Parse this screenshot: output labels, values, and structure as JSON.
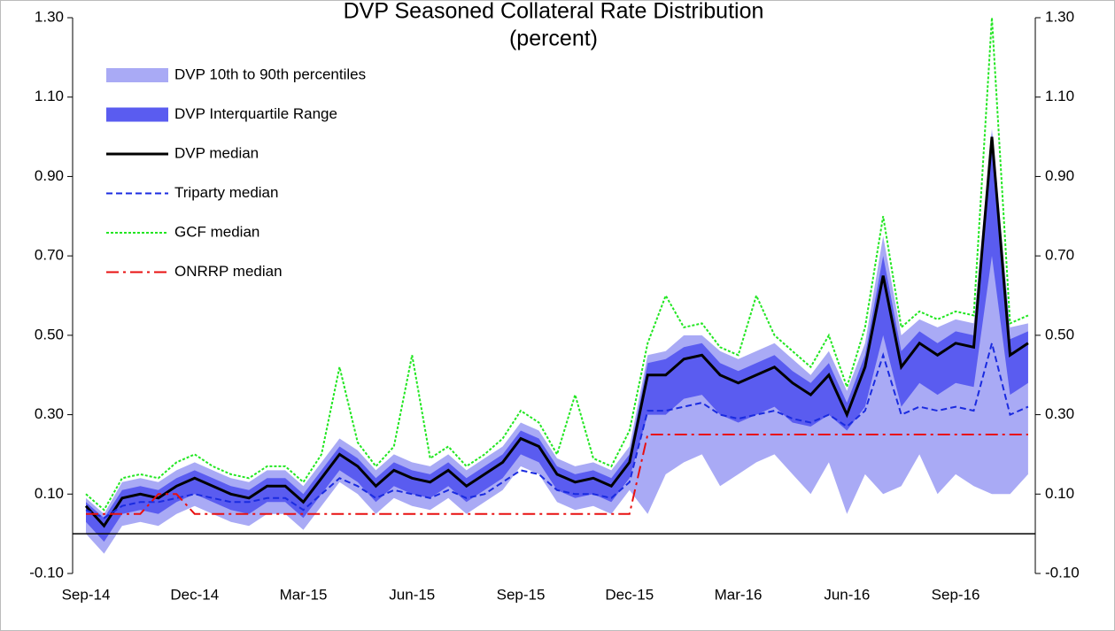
{
  "chart_data": {
    "type": "line",
    "title": "DVP Seasoned Collateral Rate Distribution",
    "subtitle": "(percent)",
    "categories": [
      "Sep-14",
      null,
      null,
      null,
      null,
      null,
      "Dec-14",
      null,
      null,
      null,
      null,
      null,
      "Mar-15",
      null,
      null,
      null,
      null,
      null,
      "Jun-15",
      null,
      null,
      null,
      null,
      null,
      "Sep-15",
      null,
      null,
      null,
      null,
      null,
      "Dec-15",
      null,
      null,
      null,
      null,
      null,
      "Mar-16",
      null,
      null,
      null,
      null,
      null,
      "Jun-16",
      null,
      null,
      null,
      null,
      null,
      "Sep-16",
      null,
      null,
      null,
      null
    ],
    "series": [
      {
        "name": "DVP 10th to 90th percentiles",
        "style": "band",
        "color": "#a9aaf5",
        "low": [
          0.0,
          -0.05,
          0.02,
          0.03,
          0.02,
          0.05,
          0.07,
          0.05,
          0.03,
          0.02,
          0.05,
          0.05,
          0.01,
          0.07,
          0.13,
          0.1,
          0.05,
          0.09,
          0.07,
          0.06,
          0.09,
          0.05,
          0.08,
          0.11,
          0.17,
          0.15,
          0.08,
          0.06,
          0.07,
          0.05,
          0.11,
          0.05,
          0.15,
          0.18,
          0.2,
          0.12,
          0.15,
          0.18,
          0.2,
          0.15,
          0.1,
          0.18,
          0.05,
          0.15,
          0.1,
          0.12,
          0.2,
          0.1,
          0.15,
          0.12,
          0.1,
          0.1,
          0.15
        ],
        "high": [
          0.09,
          0.05,
          0.13,
          0.14,
          0.13,
          0.16,
          0.18,
          0.16,
          0.14,
          0.13,
          0.16,
          0.16,
          0.12,
          0.18,
          0.24,
          0.21,
          0.16,
          0.2,
          0.18,
          0.17,
          0.2,
          0.16,
          0.19,
          0.22,
          0.28,
          0.26,
          0.19,
          0.17,
          0.18,
          0.16,
          0.22,
          0.45,
          0.46,
          0.5,
          0.5,
          0.46,
          0.44,
          0.46,
          0.48,
          0.44,
          0.4,
          0.46,
          0.36,
          0.48,
          0.75,
          0.5,
          0.54,
          0.52,
          0.54,
          0.53,
          1.02,
          0.52,
          0.53
        ]
      },
      {
        "name": "DVP Interquartile Range",
        "style": "band",
        "color": "#5a5cf0",
        "low": [
          0.03,
          -0.02,
          0.05,
          0.06,
          0.05,
          0.08,
          0.1,
          0.08,
          0.06,
          0.05,
          0.08,
          0.08,
          0.04,
          0.1,
          0.16,
          0.13,
          0.08,
          0.12,
          0.1,
          0.09,
          0.12,
          0.08,
          0.11,
          0.14,
          0.2,
          0.18,
          0.11,
          0.09,
          0.1,
          0.08,
          0.14,
          0.3,
          0.3,
          0.34,
          0.35,
          0.3,
          0.28,
          0.3,
          0.32,
          0.28,
          0.27,
          0.3,
          0.26,
          0.32,
          0.5,
          0.32,
          0.38,
          0.35,
          0.38,
          0.37,
          0.7,
          0.35,
          0.38
        ],
        "high": [
          0.08,
          0.04,
          0.11,
          0.12,
          0.11,
          0.14,
          0.16,
          0.14,
          0.12,
          0.11,
          0.14,
          0.14,
          0.1,
          0.16,
          0.22,
          0.19,
          0.14,
          0.18,
          0.16,
          0.15,
          0.18,
          0.14,
          0.17,
          0.2,
          0.26,
          0.24,
          0.17,
          0.15,
          0.16,
          0.14,
          0.2,
          0.43,
          0.44,
          0.47,
          0.48,
          0.43,
          0.41,
          0.43,
          0.45,
          0.41,
          0.38,
          0.43,
          0.33,
          0.45,
          0.7,
          0.46,
          0.51,
          0.48,
          0.51,
          0.5,
          1.01,
          0.49,
          0.51
        ]
      },
      {
        "name": "DVP median",
        "style": "solid",
        "color": "#000000",
        "values": [
          0.07,
          0.02,
          0.09,
          0.1,
          0.09,
          0.12,
          0.14,
          0.12,
          0.1,
          0.09,
          0.12,
          0.12,
          0.08,
          0.14,
          0.2,
          0.17,
          0.12,
          0.16,
          0.14,
          0.13,
          0.16,
          0.12,
          0.15,
          0.18,
          0.24,
          0.22,
          0.15,
          0.13,
          0.14,
          0.12,
          0.18,
          0.4,
          0.4,
          0.44,
          0.45,
          0.4,
          0.38,
          0.4,
          0.42,
          0.38,
          0.35,
          0.4,
          0.3,
          0.42,
          0.65,
          0.42,
          0.48,
          0.45,
          0.48,
          0.47,
          1.0,
          0.45,
          0.48
        ]
      },
      {
        "name": "Triparty median",
        "style": "dash",
        "color": "#1a2be0",
        "values": [
          0.06,
          0.04,
          0.07,
          0.08,
          0.08,
          0.09,
          0.1,
          0.09,
          0.08,
          0.08,
          0.09,
          0.09,
          0.06,
          0.1,
          0.14,
          0.12,
          0.09,
          0.11,
          0.1,
          0.09,
          0.11,
          0.09,
          0.1,
          0.13,
          0.16,
          0.15,
          0.11,
          0.1,
          0.1,
          0.09,
          0.13,
          0.31,
          0.31,
          0.32,
          0.33,
          0.3,
          0.29,
          0.3,
          0.31,
          0.29,
          0.28,
          0.3,
          0.27,
          0.31,
          0.45,
          0.3,
          0.32,
          0.31,
          0.32,
          0.31,
          0.48,
          0.3,
          0.32
        ]
      },
      {
        "name": "GCF median",
        "style": "dot",
        "color": "#22e622",
        "values": [
          0.1,
          0.06,
          0.14,
          0.15,
          0.14,
          0.18,
          0.2,
          0.17,
          0.15,
          0.14,
          0.17,
          0.17,
          0.13,
          0.2,
          0.42,
          0.23,
          0.17,
          0.22,
          0.45,
          0.19,
          0.22,
          0.17,
          0.2,
          0.24,
          0.31,
          0.28,
          0.2,
          0.35,
          0.19,
          0.17,
          0.26,
          0.48,
          0.6,
          0.52,
          0.53,
          0.47,
          0.45,
          0.6,
          0.5,
          0.46,
          0.42,
          0.5,
          0.37,
          0.52,
          0.8,
          0.52,
          0.56,
          0.54,
          0.56,
          0.55,
          1.3,
          0.53,
          0.55
        ]
      },
      {
        "name": "ONRRP median",
        "style": "dashdot",
        "color": "#e81010",
        "values": [
          0.05,
          0.05,
          0.05,
          0.05,
          0.1,
          0.1,
          0.05,
          0.05,
          0.05,
          0.05,
          0.05,
          0.05,
          0.05,
          0.05,
          0.05,
          0.05,
          0.05,
          0.05,
          0.05,
          0.05,
          0.05,
          0.05,
          0.05,
          0.05,
          0.05,
          0.05,
          0.05,
          0.05,
          0.05,
          0.05,
          0.05,
          0.25,
          0.25,
          0.25,
          0.25,
          0.25,
          0.25,
          0.25,
          0.25,
          0.25,
          0.25,
          0.25,
          0.25,
          0.25,
          0.25,
          0.25,
          0.25,
          0.25,
          0.25,
          0.25,
          0.25,
          0.25,
          0.25
        ]
      }
    ],
    "ylim": [
      -0.1,
      1.3
    ],
    "yticks": [
      {
        "value": -0.1,
        "label": "-0.10"
      },
      {
        "value": 0.1,
        "label": "0.10"
      },
      {
        "value": 0.3,
        "label": "0.30"
      },
      {
        "value": 0.5,
        "label": "0.50"
      },
      {
        "value": 0.7,
        "label": "0.70"
      },
      {
        "value": 0.9,
        "label": "0.90"
      },
      {
        "value": 1.1,
        "label": "1.10"
      },
      {
        "value": 1.3,
        "label": "1.30"
      }
    ],
    "y2lim": [
      -0.1,
      1.3
    ],
    "y2ticks": [
      {
        "value": -0.1,
        "label": "-0.10"
      },
      {
        "value": 0.1,
        "label": "0.10"
      },
      {
        "value": 0.3,
        "label": "0.30"
      },
      {
        "value": 0.5,
        "label": "0.50"
      },
      {
        "value": 0.7,
        "label": "0.70"
      },
      {
        "value": 0.9,
        "label": "0.90"
      },
      {
        "value": 1.1,
        "label": "1.10"
      },
      {
        "value": 1.3,
        "label": "1.30"
      }
    ],
    "legend": "upper left"
  }
}
